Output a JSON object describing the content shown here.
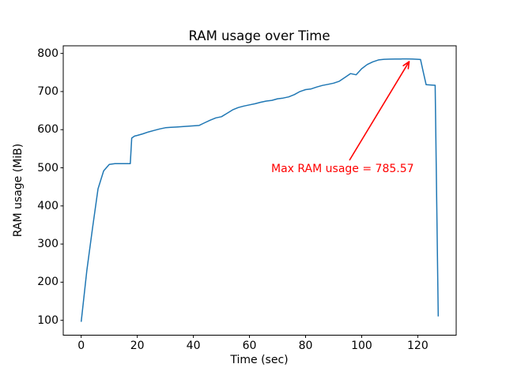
{
  "chart_data": {
    "type": "line",
    "title": "RAM usage over Time",
    "xlabel": "Time (sec)",
    "ylabel": "RAM usage (MiB)",
    "x_ticks": [
      0,
      20,
      40,
      60,
      80,
      100,
      120
    ],
    "y_ticks": [
      100,
      200,
      300,
      400,
      500,
      600,
      700,
      800
    ],
    "xlim": [
      -6.4,
      133.7
    ],
    "ylim": [
      61,
      820
    ],
    "grid": false,
    "legend": "none",
    "line_color": "#1f77b4",
    "series": [
      {
        "name": "RAM usage",
        "x": [
          0,
          2,
          4,
          6,
          8,
          10,
          12,
          14,
          16,
          17.5,
          18,
          19,
          20,
          22,
          24,
          26,
          28,
          30,
          32,
          34,
          36,
          38,
          40,
          42,
          44,
          46,
          48,
          50,
          52,
          54,
          56,
          58,
          60,
          62,
          64,
          66,
          68,
          70,
          72,
          74,
          76,
          78,
          80,
          82,
          84,
          86,
          88,
          90,
          92,
          94,
          96,
          98,
          100,
          102,
          104,
          106,
          108,
          110,
          112,
          114,
          116,
          118,
          120,
          121,
          122,
          123,
          124,
          125,
          126.2,
          127.3
        ],
        "y": [
          96,
          230,
          340,
          445,
          492,
          509,
          511,
          511,
          511,
          511,
          578,
          583,
          585,
          589,
          594,
          598,
          602,
          605,
          606,
          607,
          608,
          609,
          610,
          611,
          618,
          625,
          631,
          634,
          643,
          652,
          658,
          662,
          665,
          668,
          672,
          675,
          677,
          681,
          683,
          686,
          692,
          700,
          705,
          707,
          712,
          716,
          719,
          722,
          727,
          737,
          747,
          744,
          760,
          771,
          778,
          783,
          784.5,
          785,
          785.3,
          785.5,
          785.57,
          785.5,
          784.5,
          784,
          750,
          718,
          717.5,
          717,
          716.5,
          110
        ]
      }
    ],
    "annotation": {
      "text": "Max RAM usage = 785.57",
      "xy": [
        117.5,
        785.57
      ],
      "color": "#ff0000"
    },
    "max_value": 785.57
  }
}
